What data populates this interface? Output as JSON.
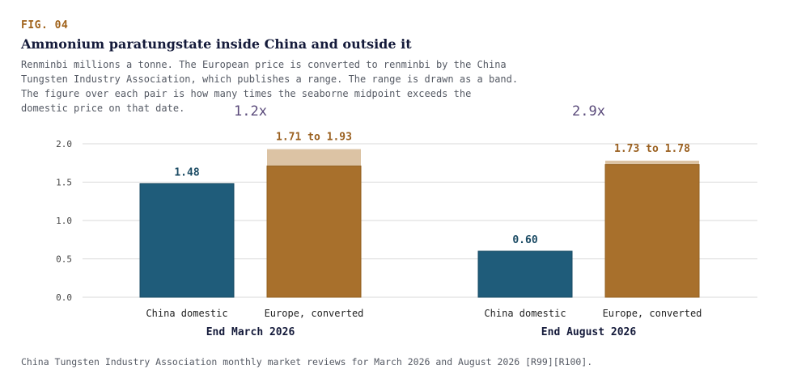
{
  "figure_label": "FIG. 04",
  "title": "Ammonium paratungstate inside China and outside it",
  "subtitle_lines": [
    "Renminbi millions a tonne. The European price is converted to renminbi by the China",
    "Tungsten Industry Association, which publishes a range. The range is drawn as a band.",
    "The figure over each pair is how many times the seaborne midpoint exceeds the",
    "domestic price on that date."
  ],
  "source": "China Tungsten Industry Association monthly market reviews for March 2026 and August 2026 [R99][R100].",
  "colors": {
    "domestic": "#1f5c7a",
    "europe": "#a8702c",
    "europe_band": "#dcc3a4",
    "ratio": "#5a4a7a",
    "domestic_label": "#1a4a63",
    "europe_label": "#9a6020",
    "grid": "#d9d9d9",
    "axis_text": "#444444",
    "group_label": "#141a3a"
  },
  "chart_data": {
    "type": "bar",
    "ylim": [
      0,
      2.0
    ],
    "yticks": [
      "0.0",
      "0.5",
      "1.0",
      "1.5",
      "2.0"
    ],
    "ytick_values": [
      0,
      0.5,
      1.0,
      1.5,
      2.0
    ],
    "groups": [
      {
        "label": "End March 2026",
        "ratio_label": "1.2x",
        "bars": [
          {
            "category": "China domestic",
            "value": 1.48,
            "label": "1.48",
            "kind": "domestic"
          },
          {
            "category": "Europe, converted",
            "low": 1.71,
            "high": 1.93,
            "label": "1.71 to 1.93",
            "kind": "europe"
          }
        ]
      },
      {
        "label": "End August 2026",
        "ratio_label": "2.9x",
        "bars": [
          {
            "category": "China domestic",
            "value": 0.6,
            "label": "0.60",
            "kind": "domestic"
          },
          {
            "category": "Europe, converted",
            "low": 1.73,
            "high": 1.78,
            "label": "1.73 to 1.78",
            "kind": "europe"
          }
        ]
      }
    ]
  }
}
